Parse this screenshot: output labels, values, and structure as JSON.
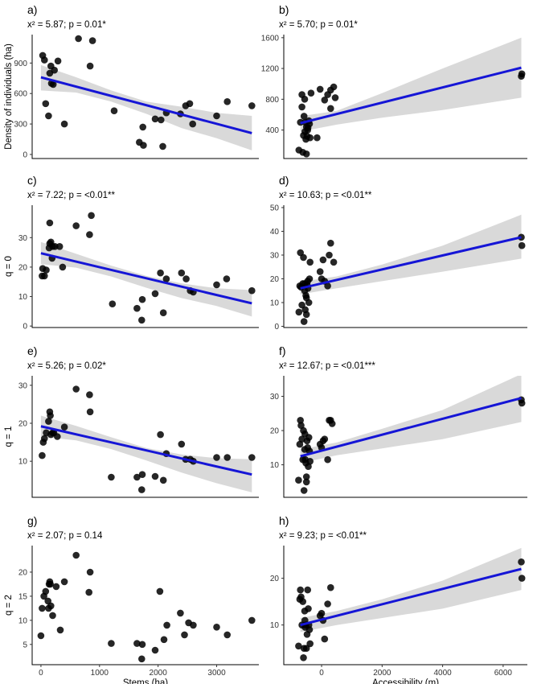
{
  "chart_data": [
    {
      "type": "scatter",
      "panel": "a)",
      "stat": "x² = 5.87; p = 0.01*",
      "xlabel": "",
      "ylabel": "Density of individuals (ha)",
      "xlim": [
        -150,
        3720
      ],
      "ylim": [
        -40,
        1180
      ],
      "xticks": [],
      "yticks": [
        0,
        300,
        600,
        900
      ],
      "points": [
        [
          30,
          975
        ],
        [
          60,
          930
        ],
        [
          80,
          500
        ],
        [
          130,
          380
        ],
        [
          150,
          800
        ],
        [
          170,
          870
        ],
        [
          180,
          700
        ],
        [
          210,
          690
        ],
        [
          230,
          830
        ],
        [
          290,
          920
        ],
        [
          400,
          300
        ],
        [
          640,
          1140
        ],
        [
          840,
          870
        ],
        [
          880,
          1120
        ],
        [
          1250,
          430
        ],
        [
          1680,
          120
        ],
        [
          1740,
          270
        ],
        [
          1750,
          90
        ],
        [
          1950,
          350
        ],
        [
          2050,
          340
        ],
        [
          2080,
          80
        ],
        [
          2140,
          410
        ],
        [
          2380,
          400
        ],
        [
          2470,
          480
        ],
        [
          2540,
          500
        ],
        [
          2590,
          300
        ],
        [
          3000,
          380
        ],
        [
          3180,
          520
        ],
        [
          3600,
          480
        ]
      ],
      "fit": {
        "x": [
          0,
          3600
        ],
        "y": [
          760,
          210
        ]
      },
      "ci": {
        "x": [
          0,
          600,
          1200,
          1800,
          2400,
          3000,
          3600
        ],
        "upper": [
          880,
          760,
          630,
          520,
          470,
          410,
          380
        ],
        "lower": [
          630,
          610,
          520,
          400,
          260,
          160,
          40
        ]
      }
    },
    {
      "type": "scatter",
      "panel": "b)",
      "stat": "x² = 5.70; p = 0.01*",
      "xlabel": "",
      "ylabel": "",
      "xlim": [
        -1250,
        6800
      ],
      "ylim": [
        30,
        1640
      ],
      "xticks": [],
      "yticks": [
        400,
        800,
        1200,
        1600
      ],
      "points": [
        [
          -750,
          140
        ],
        [
          -700,
          500
        ],
        [
          -650,
          700
        ],
        [
          -650,
          860
        ],
        [
          -620,
          110
        ],
        [
          -600,
          330
        ],
        [
          -580,
          580
        ],
        [
          -560,
          800
        ],
        [
          -550,
          380
        ],
        [
          -540,
          500
        ],
        [
          -520,
          280
        ],
        [
          -500,
          440
        ],
        [
          -500,
          90
        ],
        [
          -480,
          320
        ],
        [
          -460,
          400
        ],
        [
          -450,
          430
        ],
        [
          -420,
          520
        ],
        [
          -400,
          480
        ],
        [
          -380,
          300
        ],
        [
          -350,
          880
        ],
        [
          -150,
          300
        ],
        [
          -50,
          930
        ],
        [
          100,
          790
        ],
        [
          200,
          860
        ],
        [
          300,
          920
        ],
        [
          300,
          680
        ],
        [
          400,
          960
        ],
        [
          450,
          820
        ],
        [
          6600,
          1100
        ],
        [
          6620,
          1130
        ]
      ],
      "fit": {
        "x": [
          -700,
          6600
        ],
        "y": [
          490,
          1210
        ]
      },
      "ci": {
        "x": [
          -700,
          500,
          2000,
          4000,
          6600
        ],
        "upper": [
          580,
          650,
          880,
          1200,
          1600
        ],
        "lower": [
          380,
          470,
          560,
          660,
          820
        ]
      }
    },
    {
      "type": "scatter",
      "panel": "c)",
      "stat": "x² = 7.22; p = <0.01**",
      "xlabel": "",
      "ylabel": "q = 0",
      "xlim": [
        -150,
        3720
      ],
      "ylim": [
        -0.5,
        41
      ],
      "xticks": [],
      "yticks": [
        0,
        10,
        20,
        30
      ],
      "points": [
        [
          20,
          17
        ],
        [
          30,
          19.5
        ],
        [
          60,
          17
        ],
        [
          90,
          19
        ],
        [
          140,
          26.5
        ],
        [
          150,
          35
        ],
        [
          150,
          28
        ],
        [
          170,
          28.5
        ],
        [
          190,
          23
        ],
        [
          200,
          27
        ],
        [
          240,
          27
        ],
        [
          320,
          27
        ],
        [
          370,
          20
        ],
        [
          600,
          34
        ],
        [
          830,
          31
        ],
        [
          860,
          37.5
        ],
        [
          1220,
          7.5
        ],
        [
          1640,
          6
        ],
        [
          1720,
          2
        ],
        [
          1730,
          9
        ],
        [
          1950,
          11
        ],
        [
          2040,
          18
        ],
        [
          2090,
          4.5
        ],
        [
          2140,
          16
        ],
        [
          2400,
          18
        ],
        [
          2480,
          16
        ],
        [
          2550,
          12
        ],
        [
          2600,
          11.5
        ],
        [
          3000,
          14
        ],
        [
          3170,
          16
        ],
        [
          3600,
          12
        ]
      ],
      "fit": {
        "x": [
          0,
          3600
        ],
        "y": [
          24.7,
          7.7
        ]
      },
      "ci": {
        "x": [
          0,
          600,
          1200,
          1800,
          2400,
          3000,
          3600
        ],
        "upper": [
          28.5,
          24.5,
          20.5,
          17,
          14.5,
          12.8,
          12.2
        ],
        "lower": [
          21,
          19.8,
          16.8,
          13,
          9.5,
          6.8,
          3.2
        ]
      }
    },
    {
      "type": "scatter",
      "panel": "d)",
      "stat": "x² = 10.63; p = <0.01**",
      "xlabel": "",
      "ylabel": "",
      "xlim": [
        -1250,
        6800
      ],
      "ylim": [
        -0.5,
        51
      ],
      "xticks": [],
      "yticks": [
        0,
        10,
        20,
        30,
        40,
        50
      ],
      "points": [
        [
          -750,
          6
        ],
        [
          -720,
          17
        ],
        [
          -700,
          31
        ],
        [
          -680,
          16.5
        ],
        [
          -650,
          9
        ],
        [
          -620,
          18
        ],
        [
          -600,
          29
        ],
        [
          -580,
          2
        ],
        [
          -560,
          15
        ],
        [
          -550,
          18
        ],
        [
          -540,
          7
        ],
        [
          -520,
          13
        ],
        [
          -500,
          12
        ],
        [
          -500,
          5
        ],
        [
          -480,
          17.5
        ],
        [
          -460,
          19
        ],
        [
          -450,
          16
        ],
        [
          -420,
          10
        ],
        [
          -400,
          20
        ],
        [
          -380,
          27
        ],
        [
          -50,
          23
        ],
        [
          0,
          20
        ],
        [
          50,
          28
        ],
        [
          100,
          19
        ],
        [
          200,
          17
        ],
        [
          250,
          30
        ],
        [
          300,
          35
        ],
        [
          400,
          27
        ],
        [
          6600,
          37.5
        ],
        [
          6620,
          34
        ]
      ],
      "fit": {
        "x": [
          -700,
          6600
        ],
        "y": [
          16,
          37.5
        ]
      },
      "ci": {
        "x": [
          -700,
          500,
          2000,
          4000,
          6600
        ],
        "upper": [
          18.8,
          21,
          26,
          34,
          47
        ],
        "lower": [
          13.5,
          16,
          19,
          23,
          28.5
        ]
      }
    },
    {
      "type": "scatter",
      "panel": "e)",
      "stat": "x² = 5.26; p = 0.02*",
      "xlabel": "",
      "ylabel": "q = 1",
      "xlim": [
        -150,
        3720
      ],
      "ylim": [
        0.5,
        32.5
      ],
      "xticks": [],
      "yticks": [
        10,
        20,
        30
      ],
      "points": [
        [
          20,
          11.5
        ],
        [
          40,
          15
        ],
        [
          60,
          16
        ],
        [
          90,
          17.5
        ],
        [
          130,
          20.5
        ],
        [
          150,
          23
        ],
        [
          160,
          22
        ],
        [
          170,
          17
        ],
        [
          200,
          17.5
        ],
        [
          220,
          17.5
        ],
        [
          280,
          16.5
        ],
        [
          400,
          19
        ],
        [
          600,
          29
        ],
        [
          830,
          27.5
        ],
        [
          840,
          23
        ],
        [
          1200,
          5.8
        ],
        [
          1640,
          5.8
        ],
        [
          1720,
          2.5
        ],
        [
          1730,
          6.5
        ],
        [
          1950,
          6
        ],
        [
          2040,
          17
        ],
        [
          2090,
          5
        ],
        [
          2140,
          12
        ],
        [
          2400,
          14.5
        ],
        [
          2470,
          10.5
        ],
        [
          2550,
          10.5
        ],
        [
          2600,
          10
        ],
        [
          3000,
          11
        ],
        [
          3180,
          11
        ],
        [
          3600,
          11
        ]
      ],
      "fit": {
        "x": [
          0,
          3600
        ],
        "y": [
          19.2,
          6.5
        ]
      },
      "ci": {
        "x": [
          0,
          600,
          1200,
          1800,
          2400,
          3000,
          3600
        ],
        "upper": [
          22,
          19.3,
          16.3,
          13.5,
          11.8,
          10.8,
          10.5
        ],
        "lower": [
          16.5,
          15.5,
          13.2,
          10.2,
          7,
          4.2,
          1.8
        ]
      }
    },
    {
      "type": "scatter",
      "panel": "f)",
      "stat": "x² = 12.67; p = <0.01***",
      "xlabel": "",
      "ylabel": "",
      "xlim": [
        -1250,
        6800
      ],
      "ylim": [
        0.5,
        36
      ],
      "xticks": [],
      "yticks": [
        10,
        20,
        30
      ],
      "points": [
        [
          -760,
          5.5
        ],
        [
          -720,
          16
        ],
        [
          -700,
          23
        ],
        [
          -680,
          21.5
        ],
        [
          -650,
          17.5
        ],
        [
          -620,
          11.5
        ],
        [
          -600,
          20
        ],
        [
          -580,
          2.5
        ],
        [
          -560,
          14.5
        ],
        [
          -550,
          19
        ],
        [
          -540,
          11.5
        ],
        [
          -520,
          10.5
        ],
        [
          -500,
          6.5
        ],
        [
          -500,
          5
        ],
        [
          -480,
          17
        ],
        [
          -460,
          15
        ],
        [
          -440,
          9.5
        ],
        [
          -420,
          18
        ],
        [
          -400,
          14
        ],
        [
          -380,
          11
        ],
        [
          -50,
          16
        ],
        [
          0,
          15
        ],
        [
          50,
          17
        ],
        [
          100,
          17.5
        ],
        [
          200,
          11.5
        ],
        [
          250,
          23
        ],
        [
          300,
          23
        ],
        [
          350,
          22
        ],
        [
          6600,
          29
        ],
        [
          6620,
          28
        ]
      ],
      "fit": {
        "x": [
          -700,
          6600
        ],
        "y": [
          12.5,
          29.5
        ]
      },
      "ci": {
        "x": [
          -700,
          500,
          2000,
          4000,
          6600
        ],
        "upper": [
          14.5,
          16.5,
          20.5,
          26,
          36.5
        ],
        "lower": [
          10.5,
          12.8,
          14.8,
          17.5,
          22.5
        ]
      }
    },
    {
      "type": "scatter",
      "panel": "g)",
      "stat": "x² = 2.07; p = 0.14",
      "xlabel": "Stems (ha)",
      "ylabel": "q = 2",
      "xlim": [
        -150,
        3720
      ],
      "ylim": [
        0.8,
        25.5
      ],
      "xticks": [
        0,
        1000,
        2000,
        3000
      ],
      "yticks": [
        5,
        10,
        15,
        20
      ],
      "points": [
        [
          0,
          6.8
        ],
        [
          20,
          12.5
        ],
        [
          50,
          15
        ],
        [
          80,
          16
        ],
        [
          120,
          14
        ],
        [
          130,
          12.5
        ],
        [
          140,
          17.5
        ],
        [
          150,
          18
        ],
        [
          160,
          17.5
        ],
        [
          170,
          13
        ],
        [
          200,
          11
        ],
        [
          260,
          17
        ],
        [
          330,
          8
        ],
        [
          400,
          18
        ],
        [
          600,
          23.5
        ],
        [
          820,
          15.8
        ],
        [
          840,
          20
        ],
        [
          1200,
          5.2
        ],
        [
          1640,
          5.2
        ],
        [
          1720,
          2
        ],
        [
          1730,
          5
        ],
        [
          1950,
          3.8
        ],
        [
          2030,
          16
        ],
        [
          2100,
          6
        ],
        [
          2150,
          9
        ],
        [
          2380,
          11.5
        ],
        [
          2450,
          7
        ],
        [
          2520,
          9.5
        ],
        [
          2600,
          9
        ],
        [
          3000,
          8.6
        ],
        [
          3180,
          7
        ],
        [
          3600,
          10
        ]
      ],
      "fit": null,
      "ci": null
    },
    {
      "type": "scatter",
      "panel": "h)",
      "stat": "x² = 9.23; p = <0.01**",
      "xlabel": "Accessibility (m)",
      "ylabel": "",
      "xlim": [
        -1250,
        6800
      ],
      "ylim": [
        1.5,
        27
      ],
      "xticks": [
        0,
        2000,
        4000,
        6000
      ],
      "yticks": [
        10,
        20
      ],
      "points": [
        [
          -760,
          5.5
        ],
        [
          -720,
          15.5
        ],
        [
          -700,
          17.5
        ],
        [
          -680,
          16
        ],
        [
          -650,
          10
        ],
        [
          -620,
          15
        ],
        [
          -600,
          3
        ],
        [
          -580,
          5
        ],
        [
          -560,
          13
        ],
        [
          -550,
          11
        ],
        [
          -540,
          9.5
        ],
        [
          -520,
          10
        ],
        [
          -500,
          5
        ],
        [
          -480,
          8
        ],
        [
          -460,
          17.5
        ],
        [
          -440,
          13.5
        ],
        [
          -420,
          10
        ],
        [
          -400,
          9
        ],
        [
          -380,
          6
        ],
        [
          -50,
          12
        ],
        [
          0,
          12.5
        ],
        [
          50,
          11
        ],
        [
          100,
          7
        ],
        [
          200,
          14.5
        ],
        [
          300,
          18
        ],
        [
          6600,
          23.5
        ],
        [
          6620,
          20
        ]
      ],
      "fit": {
        "x": [
          -700,
          6600
        ],
        "y": [
          10,
          22
        ]
      },
      "ci": {
        "x": [
          -700,
          500,
          2000,
          4000,
          6600
        ],
        "upper": [
          11.5,
          13,
          15.5,
          19.5,
          26.5
        ],
        "lower": [
          8.5,
          10,
          11.5,
          13.5,
          17.5
        ]
      }
    }
  ],
  "colors": {
    "point": "#000000",
    "point_overlap": "#4d4d4d",
    "fit": "#1515d6",
    "ci": "#d9d9d9"
  }
}
